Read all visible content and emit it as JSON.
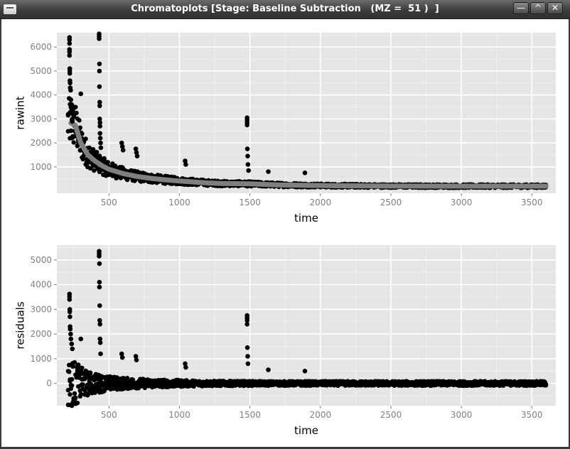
{
  "window": {
    "title": "Chromatoplots [Stage: Baseline Subtraction   (MZ =  51 )  ]",
    "buttons": [
      {
        "name": "minimize-button",
        "symbol": "—"
      },
      {
        "name": "maximize-button",
        "symbol": "^"
      },
      {
        "name": "close-button",
        "symbol": "✕"
      }
    ]
  },
  "colors": {
    "panel_bg": "#e5e5e5",
    "grid": "#ffffff",
    "points": "#000000",
    "baseline": "#7f7f7f",
    "tick_text": "#7f7f7f"
  },
  "chart_data": [
    {
      "type": "scatter",
      "name": "raw-intensity",
      "title": "",
      "xlabel": "time",
      "ylabel": "rawint",
      "xlim": [
        130,
        3670
      ],
      "ylim": [
        -100,
        6600
      ],
      "xticks": [
        500,
        1000,
        1500,
        2000,
        2500,
        3000,
        3500
      ],
      "yticks": [
        1000,
        2000,
        3000,
        4000,
        5000,
        6000
      ],
      "grid": true,
      "overlay_line": {
        "color": "#7f7f7f",
        "points": [
          [
            230,
            2830
          ],
          [
            260,
            2750
          ],
          [
            300,
            2000
          ],
          [
            350,
            1500
          ],
          [
            400,
            1250
          ],
          [
            450,
            1050
          ],
          [
            500,
            900
          ],
          [
            600,
            720
          ],
          [
            700,
            600
          ],
          [
            800,
            520
          ],
          [
            900,
            460
          ],
          [
            1000,
            410
          ],
          [
            1100,
            370
          ],
          [
            1200,
            330
          ],
          [
            1300,
            310
          ],
          [
            1400,
            300
          ],
          [
            1500,
            290
          ],
          [
            1700,
            250
          ],
          [
            1900,
            230
          ],
          [
            2100,
            215
          ],
          [
            2500,
            200
          ],
          [
            3000,
            195
          ],
          [
            3600,
            195
          ]
        ]
      },
      "spike_points": [
        [
          220,
          6400
        ],
        [
          220,
          6300
        ],
        [
          220,
          6150
        ],
        [
          220,
          5900
        ],
        [
          220,
          5800
        ],
        [
          220,
          5650
        ],
        [
          222,
          5100
        ],
        [
          222,
          5000
        ],
        [
          222,
          4900
        ],
        [
          223,
          4600
        ],
        [
          224,
          4500
        ],
        [
          225,
          4300
        ],
        [
          228,
          4200
        ],
        [
          230,
          3800
        ],
        [
          235,
          3600
        ],
        [
          240,
          3300
        ],
        [
          245,
          3200
        ],
        [
          250,
          3100
        ],
        [
          240,
          3000
        ],
        [
          240,
          2900
        ],
        [
          300,
          4050
        ],
        [
          430,
          6550
        ],
        [
          430,
          6450
        ],
        [
          430,
          6350
        ],
        [
          432,
          5300
        ],
        [
          432,
          5000
        ],
        [
          432,
          4350
        ],
        [
          434,
          3700
        ],
        [
          434,
          3550
        ],
        [
          434,
          3000
        ],
        [
          436,
          2850
        ],
        [
          436,
          2700
        ],
        [
          436,
          2400
        ],
        [
          438,
          2200
        ],
        [
          440,
          2000
        ],
        [
          442,
          1800
        ],
        [
          590,
          2000
        ],
        [
          595,
          1850
        ],
        [
          600,
          1700
        ],
        [
          690,
          1750
        ],
        [
          695,
          1600
        ],
        [
          700,
          1450
        ],
        [
          1040,
          1250
        ],
        [
          1045,
          1100
        ],
        [
          1480,
          3050
        ],
        [
          1480,
          2950
        ],
        [
          1480,
          2850
        ],
        [
          1480,
          2750
        ],
        [
          1482,
          1750
        ],
        [
          1484,
          1450
        ],
        [
          1486,
          1100
        ],
        [
          1490,
          850
        ],
        [
          1630,
          800
        ],
        [
          1890,
          750
        ]
      ],
      "noise": {
        "start": 210,
        "end": 3600,
        "band_low_fraction": 0.55,
        "band_high_fraction": 1.45
      }
    },
    {
      "type": "scatter",
      "name": "residuals",
      "title": "",
      "xlabel": "time",
      "ylabel": "residuals",
      "xlim": [
        130,
        3670
      ],
      "ylim": [
        -900,
        5600
      ],
      "xticks": [
        500,
        1000,
        1500,
        2000,
        2500,
        3000,
        3500
      ],
      "yticks": [
        0,
        1000,
        2000,
        3000,
        4000,
        5000
      ],
      "grid": true,
      "spike_points": [
        [
          220,
          3620
        ],
        [
          220,
          3520
        ],
        [
          220,
          3400
        ],
        [
          222,
          3000
        ],
        [
          222,
          2900
        ],
        [
          223,
          2700
        ],
        [
          224,
          2300
        ],
        [
          225,
          2200
        ],
        [
          228,
          2000
        ],
        [
          230,
          1800
        ],
        [
          235,
          1600
        ],
        [
          240,
          1400
        ],
        [
          300,
          1800
        ],
        [
          430,
          5350
        ],
        [
          430,
          5250
        ],
        [
          430,
          5150
        ],
        [
          432,
          4850
        ],
        [
          432,
          4100
        ],
        [
          432,
          3900
        ],
        [
          434,
          3150
        ],
        [
          434,
          2550
        ],
        [
          436,
          2400
        ],
        [
          436,
          1800
        ],
        [
          438,
          1650
        ],
        [
          440,
          1200
        ],
        [
          590,
          1200
        ],
        [
          595,
          1050
        ],
        [
          690,
          1100
        ],
        [
          695,
          950
        ],
        [
          1040,
          800
        ],
        [
          1045,
          650
        ],
        [
          1480,
          2750
        ],
        [
          1480,
          2650
        ],
        [
          1480,
          2550
        ],
        [
          1480,
          2400
        ],
        [
          1482,
          1450
        ],
        [
          1484,
          1100
        ],
        [
          1486,
          800
        ],
        [
          1630,
          550
        ],
        [
          1890,
          500
        ]
      ],
      "noise": {
        "start": 210,
        "end": 3600
      }
    }
  ]
}
